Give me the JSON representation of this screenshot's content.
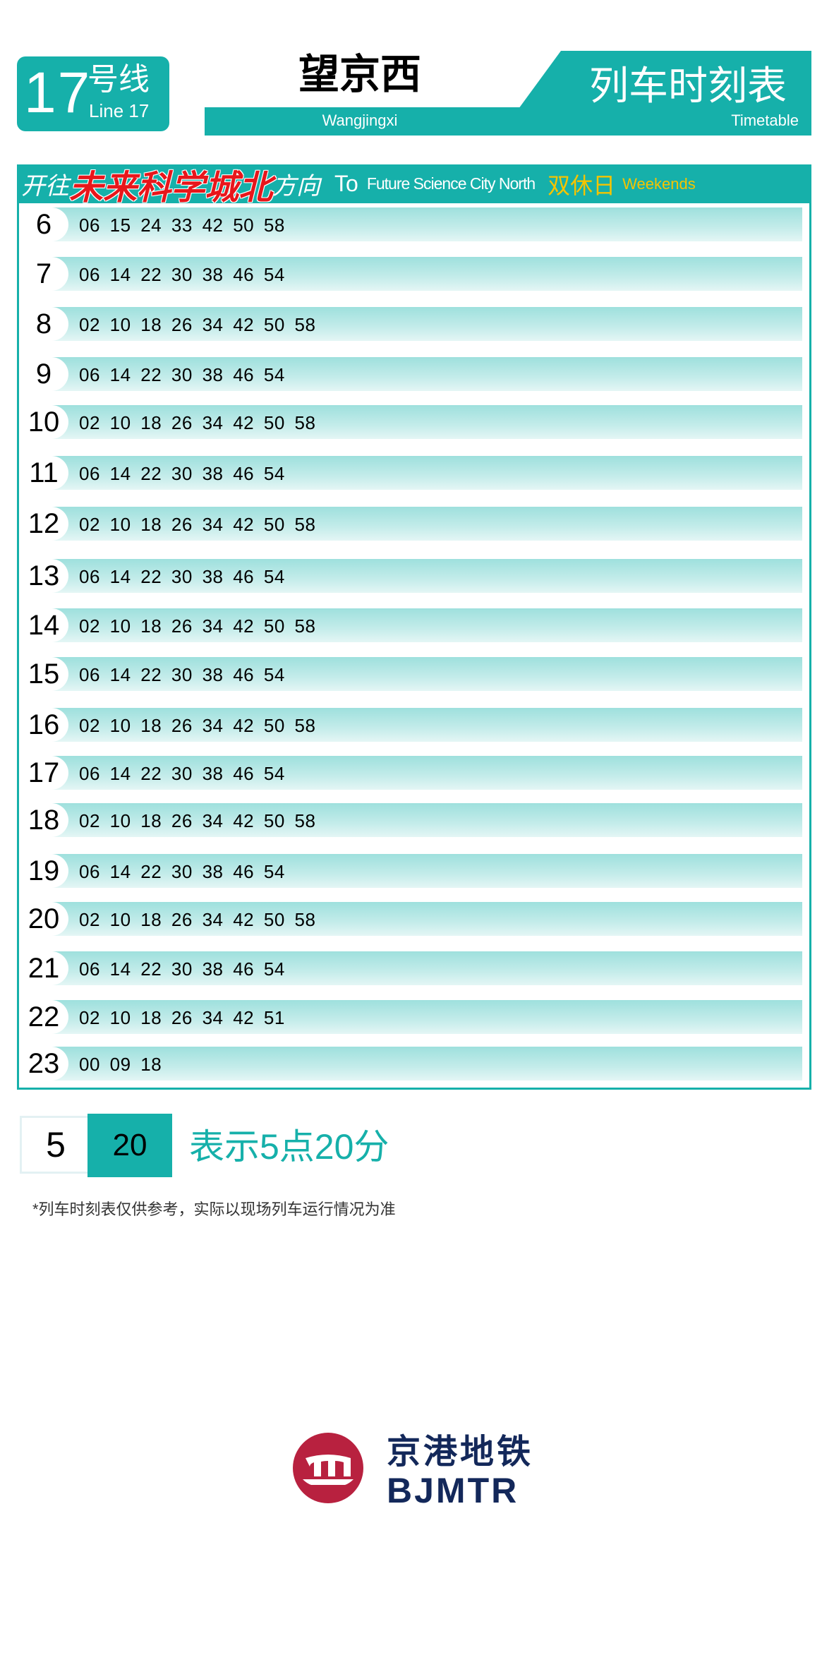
{
  "header": {
    "line_number": "17",
    "line_zh": "号线",
    "line_en": "Line 17",
    "station_zh": "望京西",
    "station_en": "Wangjingxi",
    "title_zh": "列车时刻表",
    "title_en": "Timetable"
  },
  "direction": {
    "prefix": "开往",
    "destination": "未来科学城北",
    "suffix": "方向",
    "to": "To",
    "destination_en": "Future Science City North",
    "day_type": "双休日",
    "day_type_en": "Weekends"
  },
  "rows": [
    {
      "hour": "6",
      "minutes": "06 15 24 33 42 50 58"
    },
    {
      "hour": "7",
      "minutes": "06 14 22 30 38 46 54"
    },
    {
      "hour": "8",
      "minutes": "02 10 18 26 34 42 50 58"
    },
    {
      "hour": "9",
      "minutes": "06 14 22 30 38 46 54"
    },
    {
      "hour": "10",
      "minutes": "02 10 18 26 34 42 50 58"
    },
    {
      "hour": "11",
      "minutes": "06 14 22 30 38 46 54"
    },
    {
      "hour": "12",
      "minutes": "02 10 18 26 34 42 50 58"
    },
    {
      "hour": "13",
      "minutes": "06 14 22 30 38 46 54"
    },
    {
      "hour": "14",
      "minutes": "02 10 18 26 34 42 50 58"
    },
    {
      "hour": "15",
      "minutes": "06 14 22 30 38 46 54"
    },
    {
      "hour": "16",
      "minutes": "02 10 18 26 34 42 50 58"
    },
    {
      "hour": "17",
      "minutes": "06 14 22 30 38 46 54"
    },
    {
      "hour": "18",
      "minutes": "02 10 18 26 34 42 50 58"
    },
    {
      "hour": "19",
      "minutes": "06 14 22 30 38 46 54"
    },
    {
      "hour": "20",
      "minutes": "02 10 18 26 34 42 50 58"
    },
    {
      "hour": "21",
      "minutes": "06 14 22 30 38 46 54"
    },
    {
      "hour": "22",
      "minutes": "02 10 18 26 34 42 51"
    },
    {
      "hour": "23",
      "minutes": "00 09 18"
    }
  ],
  "legend": {
    "hour": "5",
    "minute": "20",
    "explanation": "表示5点20分"
  },
  "note": "*列车时刻表仅供参考，实际以现场列车运行情况为准",
  "logo": {
    "zh": "京港地铁",
    "en": "BJMTR"
  },
  "colors": {
    "brand": "#16b0aa",
    "destination": "#e8161b",
    "day_type": "#f5c400",
    "logo_red": "#b8213f",
    "logo_navy": "#13285a"
  }
}
